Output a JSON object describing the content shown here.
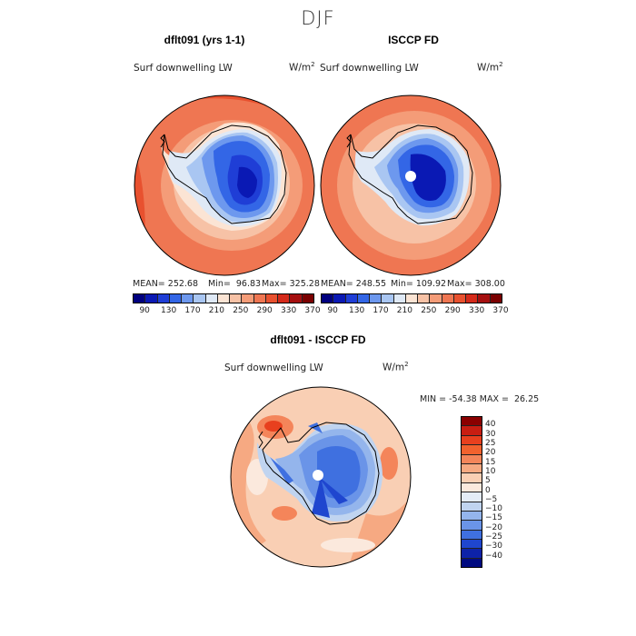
{
  "season": "DJF",
  "panels": {
    "model": {
      "title": "dflt091 (yrs 1-1)",
      "variable": "Surf downwelling LW",
      "units_base": "W/m",
      "units_exp": "2",
      "mean": "MEAN= 252.68",
      "min": "Min=  96.83",
      "max": "Max= 325.28"
    },
    "obs": {
      "title": "ISCCP FD",
      "variable": "Surf downwelling LW",
      "units_base": "W/m",
      "units_exp": "2",
      "mean": "MEAN= 248.55",
      "min": "Min= 109.92",
      "max": "Max= 308.00"
    },
    "diff": {
      "title": "dflt091 - ISCCP FD",
      "variable": "Surf downwelling LW",
      "units_base": "W/m",
      "units_exp": "2",
      "minmax": "MIN = -54.38 MAX =  26.25"
    }
  },
  "colorbar_top": {
    "colors": [
      "#00007f",
      "#0a19b4",
      "#1f3ed6",
      "#3366e6",
      "#6d98ee",
      "#a9c6f2",
      "#dfe9f6",
      "#fbe4d4",
      "#f7c2a6",
      "#f49c78",
      "#ef7652",
      "#e8512f",
      "#d42a1a",
      "#a50f0f",
      "#7a0000"
    ],
    "labels": [
      "90",
      "130",
      "170",
      "210",
      "250",
      "290",
      "330",
      "370"
    ]
  },
  "colorbar_diff": {
    "colors_top_to_bottom": [
      "#8b0000",
      "#c81e12",
      "#e8401e",
      "#f2622e",
      "#f4855a",
      "#f6a982",
      "#f9cfb4",
      "#fbe9dd",
      "#e4ecf7",
      "#c0d4f0",
      "#94b5ec",
      "#6a94e8",
      "#3f70e0",
      "#1f46cf",
      "#0d22a8",
      "#000a80"
    ],
    "labels_top_to_bottom": [
      "40",
      "30",
      "25",
      "20",
      "15",
      "10",
      "5",
      "0",
      "−5",
      "−10",
      "−15",
      "−20",
      "−25",
      "−30",
      "−40"
    ]
  }
}
